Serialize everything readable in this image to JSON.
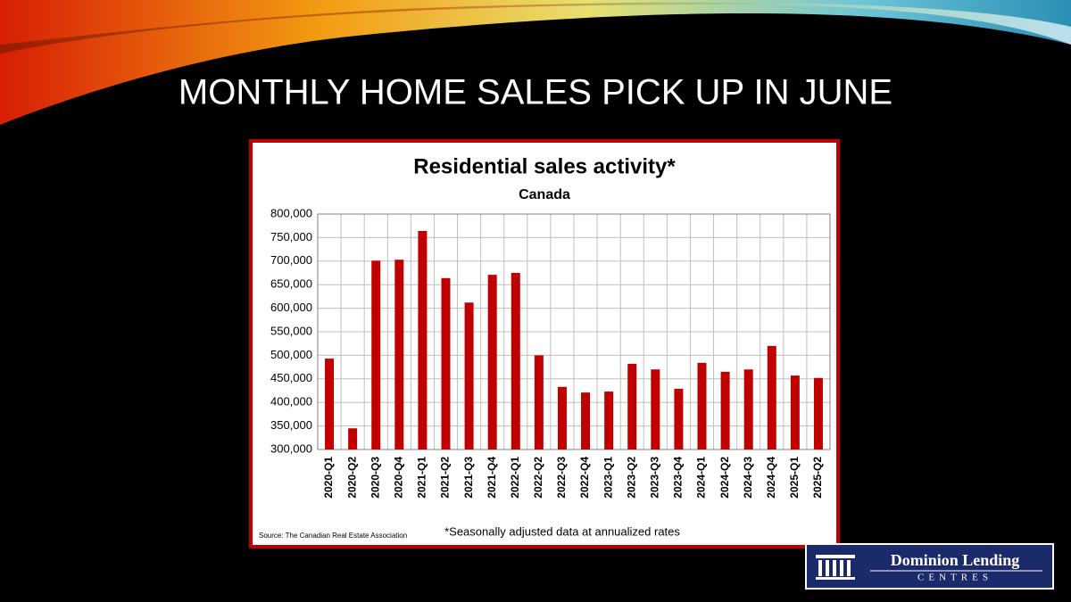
{
  "slide_title": "MONTHLY HOME SALES PICK UP IN JUNE",
  "logo": {
    "line1": "Dominion Lending",
    "line2": "CENTRES"
  },
  "chart_data": {
    "type": "bar",
    "title": "Residential sales activity*",
    "subtitle": "Canada",
    "source": "Source: The Canadian Real Estate Association",
    "footnote": "*Seasonally adjusted data at annualized rates",
    "color": "#c00000",
    "grid": true,
    "categories": [
      "2020-Q1",
      "2020-Q2",
      "2020-Q3",
      "2020-Q4",
      "2021-Q1",
      "2021-Q2",
      "2021-Q3",
      "2021-Q4",
      "2022-Q1",
      "2022-Q2",
      "2022-Q3",
      "2022-Q4",
      "2023-Q1",
      "2023-Q2",
      "2023-Q3",
      "2023-Q4",
      "2024-Q1",
      "2024-Q2",
      "2024-Q3",
      "2024-Q4",
      "2025-Q1",
      "2025-Q2"
    ],
    "values": [
      493000,
      345000,
      701000,
      703000,
      764000,
      664000,
      612000,
      671000,
      675000,
      500000,
      433000,
      421000,
      423000,
      482000,
      470000,
      429000,
      484000,
      465000,
      470000,
      520000,
      457000,
      452000
    ],
    "ylim": [
      300000,
      800000
    ],
    "yticks": [
      {
        "value": 300000,
        "label": "300,000"
      },
      {
        "value": 350000,
        "label": "350,000"
      },
      {
        "value": 400000,
        "label": "400,000"
      },
      {
        "value": 450000,
        "label": "450,000"
      },
      {
        "value": 500000,
        "label": "500,000"
      },
      {
        "value": 550000,
        "label": "550,000"
      },
      {
        "value": 600000,
        "label": "600,000"
      },
      {
        "value": 650000,
        "label": "650,000"
      },
      {
        "value": 700000,
        "label": "700,000"
      },
      {
        "value": 750000,
        "label": "750,000"
      },
      {
        "value": 800000,
        "label": "800,000"
      }
    ]
  }
}
